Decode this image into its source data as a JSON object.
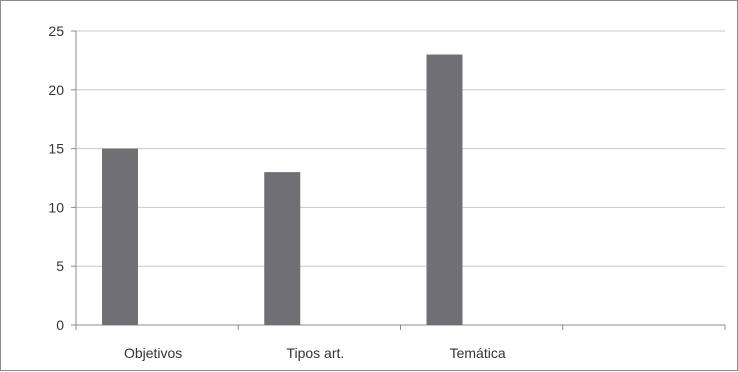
{
  "chart_data": {
    "type": "bar",
    "categories": [
      "Objetivos",
      "Tipos art.",
      "Temática",
      ""
    ],
    "values": [
      15,
      13,
      23,
      null
    ],
    "title": "",
    "xlabel": "",
    "ylabel": "",
    "ylim": [
      0,
      25
    ],
    "yticks": [
      0,
      5,
      10,
      15,
      20,
      25
    ],
    "grid": true,
    "legend": "none",
    "bar_color": "#707074",
    "grid_color": "#c8c8c8"
  }
}
